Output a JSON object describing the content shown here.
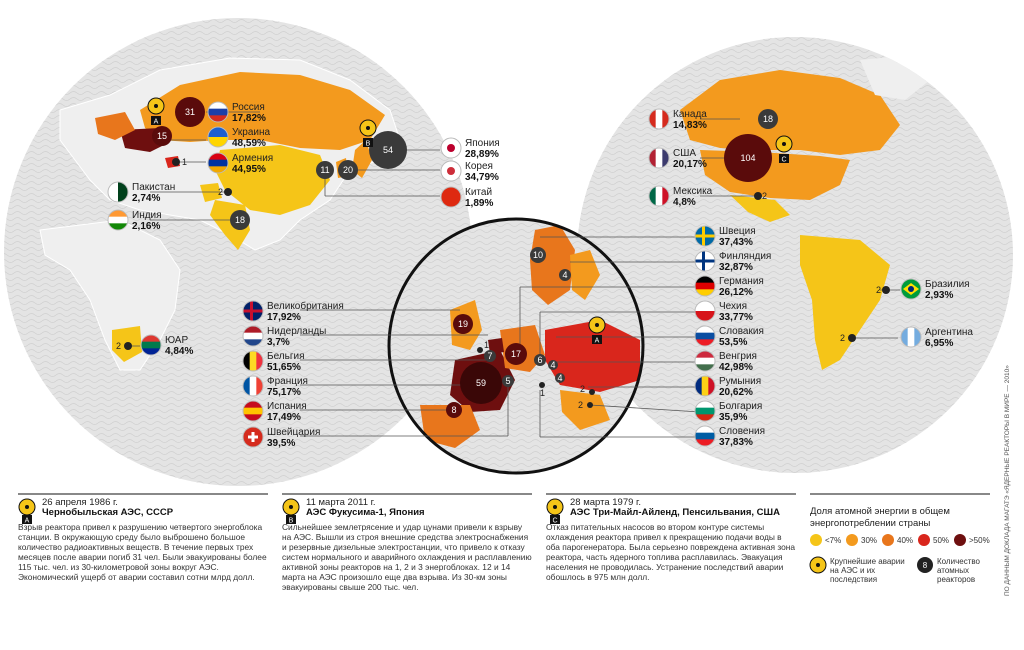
{
  "colors": {
    "lt7": "#f5c518",
    "p30": "#f39a1e",
    "p40": "#e8761c",
    "p50": "#d9261c",
    "gt50": "#6e0f0f",
    "reactor_bubble": "#3a3a3a",
    "globe": "#e2e2e2",
    "land": "#eeeeee"
  },
  "countries_left": [
    {
      "name": "Россия",
      "pct": "17,82%",
      "flag": "russia-flag-icon"
    },
    {
      "name": "Украина",
      "pct": "48,59%",
      "flag": "ukraine-flag-icon"
    },
    {
      "name": "Армения",
      "pct": "44,95%",
      "flag": "armenia-flag-icon"
    },
    {
      "name": "Пакистан",
      "pct": "2,74%",
      "flag": "pakistan-flag-icon"
    },
    {
      "name": "Индия",
      "pct": "2,16%",
      "flag": "india-flag-icon"
    },
    {
      "name": "Япония",
      "pct": "28,89%",
      "flag": "japan-flag-icon"
    },
    {
      "name": "Корея",
      "pct": "34,79%",
      "flag": "korea-flag-icon"
    },
    {
      "name": "Китай",
      "pct": "1,89%",
      "flag": "china-flag-icon"
    },
    {
      "name": "ЮАР",
      "pct": "4,84%",
      "flag": "south-africa-flag-icon"
    }
  ],
  "countries_europe_left": [
    {
      "name": "Великобритания",
      "pct": "17,92%",
      "flag": "uk-flag-icon"
    },
    {
      "name": "Нидерланды",
      "pct": "3,7%",
      "flag": "netherlands-flag-icon"
    },
    {
      "name": "Бельгия",
      "pct": "51,65%",
      "flag": "belgium-flag-icon"
    },
    {
      "name": "Франция",
      "pct": "75,17%",
      "flag": "france-flag-icon"
    },
    {
      "name": "Испания",
      "pct": "17,49%",
      "flag": "spain-flag-icon"
    },
    {
      "name": "Швейцария",
      "pct": "39,5%",
      "flag": "switzerland-flag-icon"
    }
  ],
  "countries_europe_right": [
    {
      "name": "Швеция",
      "pct": "37,43%",
      "flag": "sweden-flag-icon"
    },
    {
      "name": "Финляндия",
      "pct": "32,87%",
      "flag": "finland-flag-icon"
    },
    {
      "name": "Германия",
      "pct": "26,12%",
      "flag": "germany-flag-icon"
    },
    {
      "name": "Чехия",
      "pct": "33,77%",
      "flag": "czech-flag-icon"
    },
    {
      "name": "Словакия",
      "pct": "53,5%",
      "flag": "slovakia-flag-icon"
    },
    {
      "name": "Венгрия",
      "pct": "42,98%",
      "flag": "hungary-flag-icon"
    },
    {
      "name": "Румыния",
      "pct": "20,62%",
      "flag": "romania-flag-icon"
    },
    {
      "name": "Болгария",
      "pct": "35,9%",
      "flag": "bulgaria-flag-icon"
    },
    {
      "name": "Словения",
      "pct": "37,83%",
      "flag": "slovenia-flag-icon"
    }
  ],
  "countries_americas": [
    {
      "name": "Канада",
      "pct": "14,83%",
      "flag": "canada-flag-icon"
    },
    {
      "name": "США",
      "pct": "20,17%",
      "flag": "usa-flag-icon"
    },
    {
      "name": "Мексика",
      "pct": "4,8%",
      "flag": "mexico-flag-icon"
    },
    {
      "name": "Бразилия",
      "pct": "2,93%",
      "flag": "brazil-flag-icon"
    },
    {
      "name": "Аргентина",
      "pct": "6,95%",
      "flag": "argentina-flag-icon"
    }
  ],
  "reactor_counts": {
    "russia": "31",
    "ukraine": "15",
    "armenia": "1",
    "pakistan": "2",
    "india": "18",
    "japan": "54",
    "korea": "20",
    "china": "11",
    "south_africa": "2",
    "canada": "18",
    "usa": "104",
    "mexico": "2",
    "brazil": "2",
    "argentina": "2",
    "sweden": "10",
    "finland": "4",
    "uk": "19",
    "netherlands": "1",
    "belgium": "7",
    "germany": "17",
    "czech": "6",
    "slovakia": "4",
    "hungary": "4",
    "slovenia": "1",
    "romania": "2",
    "bulgaria": "2",
    "switzerland": "5",
    "france": "59",
    "spain": "8"
  },
  "accident_markers": {
    "a": "A",
    "b": "B",
    "c": "C"
  },
  "accidents": [
    {
      "date": "26 апреля 1986 г.",
      "title": "Чернобыльская АЭС, СССР",
      "text": "Взрыв реактора привел к разрушению четвертого энергоблока станции. В окружающую среду было выброшено большое количество радиоактивных веществ. В течение первых трех месяцев после аварии погиб 31 чел. Были эвакуированы более 115 тыс. чел. из 30-километровой зоны вокруг АЭС. Экономический ущерб от аварии составил сотни млрд долл."
    },
    {
      "date": "11 марта 2011 г.",
      "title": "АЭС Фукусима-1, Япония",
      "text": "Сильнейшее землетрясение и удар цунами привели к взрыву на АЭС. Вышли из строя внешние средства электроснабжения и резервные дизельные электростанции, что привело к отказу систем нормального и аварийного охлаждения и расплавлению активной зоны реакторов на 1, 2 и 3 энергоблоках. 12 и 14 марта на АЭС произошло еще два взрыва. Из 30-км зоны эвакуированы свыше 200 тыс. чел."
    },
    {
      "date": "28 марта 1979 г.",
      "title": "АЭС Три-Майл-Айленд, Пенсильвания, США",
      "text": "Отказ питательных насосов во втором контуре системы охлаждения реактора привел к прекращению подачи воды в оба парогенератора. Была серьезно повреждена активная зона реактора, часть ядерного топлива расплавилась. Эвакуация населения не проводилась. Устранение последствий аварии обошлось в 975 млн долл."
    }
  ],
  "legend": {
    "title": "Доля атомной энергии в общем энергопотреблении страны",
    "items": [
      "<7%",
      "30%",
      "40%",
      "50%",
      ">50%"
    ],
    "accident_label": "Крупнейшие аварии на АЭС и их последствия",
    "reactor_label": "Количество атомных реакторов",
    "reactor_sample": "8"
  },
  "source": "ПО ДАННЫМ ДОКЛАДА МАГАТЭ «ЯДЕРНЫЕ РЕАКТОРЫ В МИРЕ — 2010»"
}
